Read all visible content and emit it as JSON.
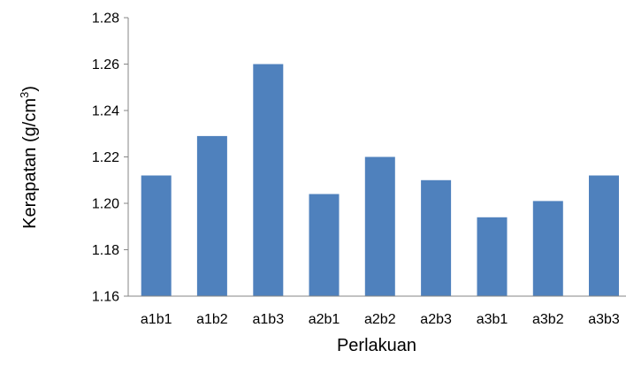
{
  "chart_data": {
    "type": "bar",
    "categories": [
      "a1b1",
      "a1b2",
      "a1b3",
      "a2b1",
      "a2b2",
      "a2b3",
      "a3b1",
      "a3b2",
      "a3b3"
    ],
    "values": [
      1.212,
      1.229,
      1.26,
      1.204,
      1.22,
      1.21,
      1.194,
      1.201,
      1.212
    ],
    "xlabel": "Perlakuan",
    "ylabel": "Kerapatan (g/cm",
    "ylabel_superscript": "3",
    "ylabel_close": ")",
    "ylim": [
      1.16,
      1.28
    ],
    "yticks": [
      1.16,
      1.18,
      1.2,
      1.22,
      1.24,
      1.26,
      1.28
    ],
    "ytick_labels": [
      "1.16",
      "1.18",
      "1.20",
      "1.22",
      "1.24",
      "1.26",
      "1.28"
    ],
    "bar_color": "#4f81bd",
    "grid": false,
    "legend": "none"
  }
}
